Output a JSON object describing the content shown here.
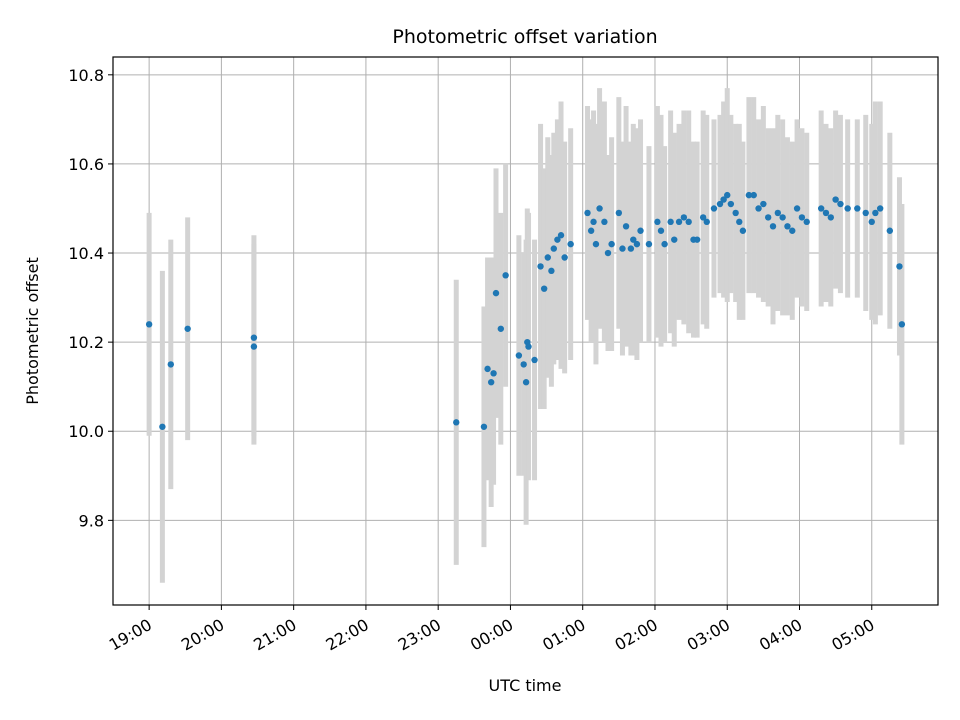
{
  "chart_data": {
    "type": "scatter",
    "title": "Photometric offset variation",
    "xlabel": "UTC time",
    "ylabel": "Photometric offset",
    "grid": true,
    "xlim": [
      "18:30",
      "05:55"
    ],
    "ylim": [
      9.61,
      10.84
    ],
    "x_ticks": [
      "19:00",
      "20:00",
      "21:00",
      "22:00",
      "23:00",
      "00:00",
      "01:00",
      "02:00",
      "03:00",
      "04:00",
      "05:00"
    ],
    "y_ticks": [
      "9.8",
      "10.0",
      "10.2",
      "10.4",
      "10.6",
      "10.8"
    ],
    "y_tick_values": [
      9.8,
      10.0,
      10.2,
      10.4,
      10.6,
      10.8
    ],
    "colors": {
      "points": "#1f77b4",
      "errorbars": "#d3d3d3",
      "grid": "#b0b0b0"
    },
    "series": [
      {
        "x": [
          "19:00",
          "19:11",
          "19:18",
          "19:32",
          "20:27",
          "20:27",
          "23:15",
          "23:38",
          "23:41",
          "23:44",
          "23:46",
          "23:48",
          "23:52",
          "23:56",
          "00:07",
          "00:11",
          "00:13",
          "00:14",
          "00:15",
          "00:20",
          "00:25",
          "00:28",
          "00:31",
          "00:34",
          "00:36",
          "00:39",
          "00:42",
          "00:45",
          "00:50",
          "01:04",
          "01:07",
          "01:09",
          "01:11",
          "01:14",
          "01:18",
          "01:21",
          "01:24",
          "01:30",
          "01:33",
          "01:36",
          "01:40",
          "01:42",
          "01:45",
          "01:48",
          "01:55",
          "02:02",
          "02:05",
          "02:08",
          "02:13",
          "02:16",
          "02:20",
          "02:24",
          "02:28",
          "02:32",
          "02:35",
          "02:40",
          "02:43",
          "02:49",
          "02:54",
          "02:57",
          "03:00",
          "03:03",
          "03:07",
          "03:10",
          "03:13",
          "03:18",
          "03:22",
          "03:26",
          "03:30",
          "03:34",
          "03:38",
          "03:42",
          "03:46",
          "03:50",
          "03:54",
          "03:58",
          "04:02",
          "04:06",
          "04:18",
          "04:22",
          "04:26",
          "04:30",
          "04:34",
          "04:40",
          "04:48",
          "04:55",
          "05:00",
          "05:03",
          "05:07",
          "05:15",
          "05:23",
          "05:25"
        ],
        "y": [
          10.24,
          10.01,
          10.15,
          10.23,
          10.19,
          10.21,
          10.02,
          10.01,
          10.14,
          10.11,
          10.13,
          10.31,
          10.23,
          10.35,
          10.17,
          10.15,
          10.11,
          10.2,
          10.19,
          10.16,
          10.37,
          10.32,
          10.39,
          10.36,
          10.41,
          10.43,
          10.44,
          10.39,
          10.42,
          10.49,
          10.45,
          10.47,
          10.42,
          10.5,
          10.47,
          10.4,
          10.42,
          10.49,
          10.41,
          10.46,
          10.41,
          10.43,
          10.42,
          10.45,
          10.42,
          10.47,
          10.45,
          10.42,
          10.47,
          10.43,
          10.47,
          10.48,
          10.47,
          10.43,
          10.43,
          10.48,
          10.47,
          10.5,
          10.51,
          10.52,
          10.53,
          10.51,
          10.49,
          10.47,
          10.45,
          10.53,
          10.53,
          10.5,
          10.51,
          10.48,
          10.46,
          10.49,
          10.48,
          10.46,
          10.45,
          10.5,
          10.48,
          10.47,
          10.5,
          10.49,
          10.48,
          10.52,
          10.51,
          10.5,
          10.5,
          10.49,
          10.47,
          10.49,
          10.5,
          10.45,
          10.37,
          10.24
        ],
        "yerr_low": [
          0.25,
          0.35,
          0.28,
          0.25,
          0.22,
          0.22,
          0.32,
          0.27,
          0.25,
          0.28,
          0.25,
          0.28,
          0.26,
          0.25,
          0.27,
          0.25,
          0.32,
          0.3,
          0.3,
          0.27,
          0.32,
          0.27,
          0.27,
          0.26,
          0.26,
          0.27,
          0.3,
          0.26,
          0.26,
          0.24,
          0.25,
          0.25,
          0.27,
          0.27,
          0.27,
          0.22,
          0.24,
          0.26,
          0.24,
          0.27,
          0.24,
          0.26,
          0.26,
          0.25,
          0.22,
          0.26,
          0.26,
          0.22,
          0.25,
          0.24,
          0.22,
          0.24,
          0.25,
          0.22,
          0.22,
          0.24,
          0.24,
          0.2,
          0.2,
          0.22,
          0.24,
          0.2,
          0.2,
          0.22,
          0.2,
          0.22,
          0.22,
          0.2,
          0.22,
          0.2,
          0.22,
          0.22,
          0.22,
          0.2,
          0.2,
          0.2,
          0.2,
          0.2,
          0.22,
          0.2,
          0.2,
          0.2,
          0.2,
          0.2,
          0.2,
          0.22,
          0.22,
          0.25,
          0.24,
          0.22,
          0.2,
          0.27
        ],
        "yerr_high": [
          0.25,
          0.35,
          0.28,
          0.25,
          0.23,
          0.23,
          0.32,
          0.27,
          0.25,
          0.28,
          0.25,
          0.28,
          0.26,
          0.25,
          0.27,
          0.25,
          0.32,
          0.3,
          0.3,
          0.27,
          0.32,
          0.27,
          0.27,
          0.26,
          0.26,
          0.27,
          0.3,
          0.26,
          0.26,
          0.24,
          0.25,
          0.25,
          0.27,
          0.27,
          0.27,
          0.22,
          0.24,
          0.26,
          0.24,
          0.27,
          0.24,
          0.26,
          0.26,
          0.25,
          0.22,
          0.26,
          0.26,
          0.22,
          0.25,
          0.24,
          0.22,
          0.24,
          0.25,
          0.22,
          0.22,
          0.24,
          0.24,
          0.2,
          0.2,
          0.22,
          0.24,
          0.2,
          0.2,
          0.22,
          0.2,
          0.22,
          0.22,
          0.2,
          0.22,
          0.2,
          0.22,
          0.22,
          0.22,
          0.2,
          0.2,
          0.2,
          0.2,
          0.2,
          0.22,
          0.2,
          0.2,
          0.2,
          0.2,
          0.2,
          0.2,
          0.22,
          0.22,
          0.25,
          0.24,
          0.22,
          0.2,
          0.27
        ]
      }
    ]
  }
}
